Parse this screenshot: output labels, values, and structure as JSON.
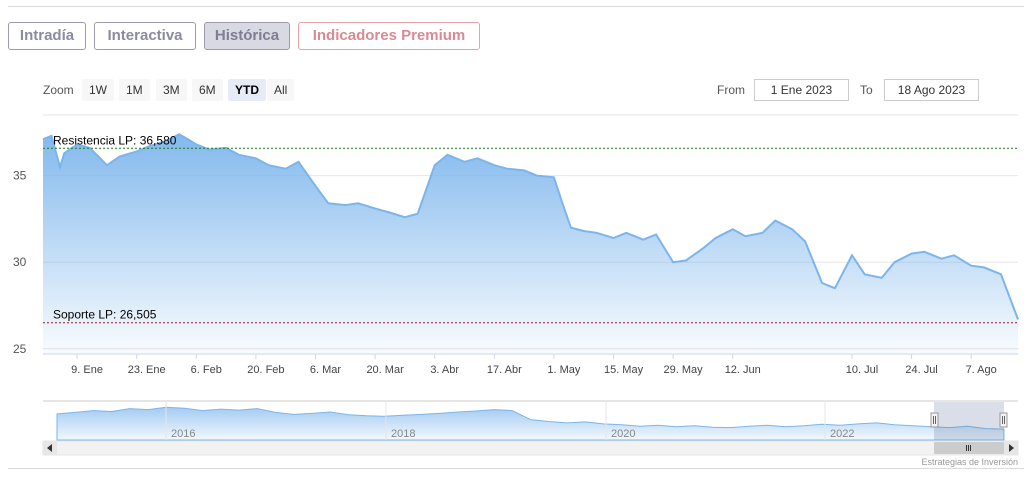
{
  "tabs": [
    {
      "label": "Intradía"
    },
    {
      "label": "Interactiva"
    },
    {
      "label": "Histórica"
    },
    {
      "label": "Indicadores Premium"
    }
  ],
  "active_tab": "Histórica",
  "zoom": {
    "label": "Zoom",
    "buttons": [
      "1W",
      "1M",
      "3M",
      "6M",
      "YTD",
      "All"
    ],
    "selected": "YTD"
  },
  "range": {
    "from_label": "From",
    "from_value": "1 Ene 2023",
    "to_label": "To",
    "to_value": "18 Ago 2023"
  },
  "credits": "Estrategias de Inversión",
  "colors": {
    "series_line": "#7cb5ec",
    "resistance_line": "#1a7a1a",
    "support_line": "#9a1a1a",
    "tab_border": "#9b9bad",
    "premium_tab": "#d98a92"
  },
  "chart_data": {
    "type": "area",
    "x_labels": [
      "9. Ene",
      "23. Ene",
      "6. Feb",
      "20. Feb",
      "6. Mar",
      "20. Mar",
      "3. Abr",
      "17. Abr",
      "1. May",
      "15. May",
      "29. May",
      "12. Jun",
      "10. Jul",
      "24. Jul",
      "7. Ago"
    ],
    "x_label_dates": [
      "2023-01-09",
      "2023-01-23",
      "2023-02-06",
      "2023-02-20",
      "2023-03-06",
      "2023-03-20",
      "2023-04-03",
      "2023-04-17",
      "2023-05-01",
      "2023-05-15",
      "2023-05-29",
      "2023-06-12",
      "2023-07-10",
      "2023-07-24",
      "2023-08-07"
    ],
    "y_ticks": [
      25,
      30,
      35
    ],
    "ylim": [
      24.7,
      38.5
    ],
    "xlim": [
      "2023-01-01",
      "2023-08-18"
    ],
    "grid": true,
    "series": [
      {
        "x": [
          "2023-01-01",
          "2023-01-03",
          "2023-01-05",
          "2023-01-06",
          "2023-01-09",
          "2023-01-12",
          "2023-01-16",
          "2023-01-19",
          "2023-01-23",
          "2023-01-26",
          "2023-01-30",
          "2023-02-02",
          "2023-02-06",
          "2023-02-09",
          "2023-02-13",
          "2023-02-16",
          "2023-02-20",
          "2023-02-23",
          "2023-02-27",
          "2023-03-02",
          "2023-03-06",
          "2023-03-09",
          "2023-03-13",
          "2023-03-16",
          "2023-03-20",
          "2023-03-23",
          "2023-03-27",
          "2023-03-30",
          "2023-04-03",
          "2023-04-06",
          "2023-04-10",
          "2023-04-13",
          "2023-04-17",
          "2023-04-20",
          "2023-04-24",
          "2023-04-27",
          "2023-05-01",
          "2023-05-03",
          "2023-05-05",
          "2023-05-08",
          "2023-05-11",
          "2023-05-15",
          "2023-05-18",
          "2023-05-22",
          "2023-05-25",
          "2023-05-29",
          "2023-06-01",
          "2023-06-05",
          "2023-06-08",
          "2023-06-12",
          "2023-06-15",
          "2023-06-19",
          "2023-06-22",
          "2023-06-26",
          "2023-06-29",
          "2023-07-03",
          "2023-07-06",
          "2023-07-10",
          "2023-07-13",
          "2023-07-17",
          "2023-07-20",
          "2023-07-24",
          "2023-07-27",
          "2023-07-31",
          "2023-08-03",
          "2023-08-07",
          "2023-08-10",
          "2023-08-14",
          "2023-08-16",
          "2023-08-18"
        ],
        "y": [
          37.1,
          37.3,
          35.5,
          36.3,
          36.8,
          36.6,
          35.6,
          36.1,
          36.4,
          36.7,
          37.0,
          37.4,
          36.8,
          36.5,
          36.6,
          36.2,
          36.0,
          35.6,
          35.4,
          35.8,
          34.4,
          33.4,
          33.3,
          33.4,
          33.1,
          32.9,
          32.6,
          32.8,
          35.6,
          36.2,
          35.8,
          36.0,
          35.6,
          35.4,
          35.3,
          35.0,
          34.9,
          33.4,
          32.0,
          31.8,
          31.7,
          31.4,
          31.7,
          31.3,
          31.6,
          30.0,
          30.1,
          30.8,
          31.4,
          31.9,
          31.5,
          31.7,
          32.4,
          31.9,
          31.2,
          28.8,
          28.5,
          30.4,
          29.3,
          29.1,
          30.0,
          30.5,
          30.6,
          30.2,
          30.4,
          29.8,
          29.7,
          29.3,
          28.0,
          26.7
        ]
      }
    ],
    "annotations": [
      {
        "label": "Resistencia LP: 36,580",
        "value": 36.58
      },
      {
        "label": "Soporte LP: 26,505",
        "value": 26.505
      }
    ],
    "navigator": {
      "x_labels": [
        "2016",
        "2018",
        "2020",
        "2022"
      ]
    }
  }
}
